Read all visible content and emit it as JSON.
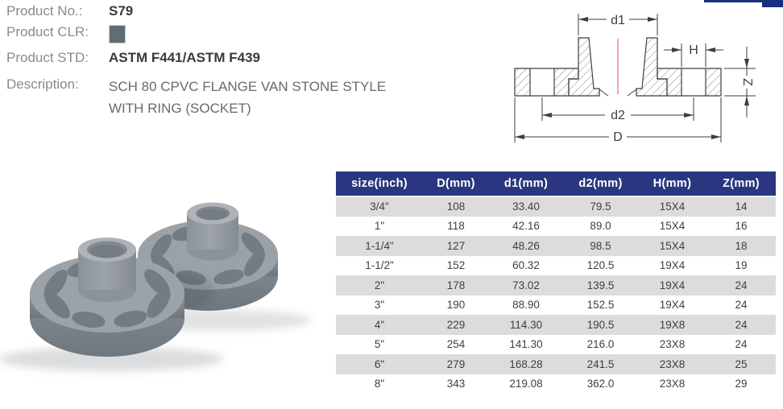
{
  "colors": {
    "accent": "#16307f",
    "navy": "#2a3780",
    "alt_row": "#dcdcdc",
    "swatch": "#5d6f72",
    "diagram_line": "#3e3e3e",
    "centerline": "#ef8f8f",
    "flange": "#9aa1a7"
  },
  "product_info": {
    "no_label": "Product No.:",
    "no_value": "S79",
    "clr_label": "Product CLR:",
    "clr_swatch_color": "#5d6f72",
    "std_label": "Product STD:",
    "std_value": "ASTM F441/ASTM F439",
    "desc_label": "Description:",
    "desc_value": "SCH 80 CPVC FLANGE VAN STONE STYLE WITH RING (SOCKET)"
  },
  "diagram": {
    "dim_labels": {
      "d1": "d1",
      "d2": "d2",
      "D": "D",
      "H": "H",
      "Z": "Z"
    }
  },
  "photo": {
    "description": "Two grey CPVC van stone style flanges with ring"
  },
  "spec_table": {
    "headers": [
      "size(inch)",
      "D(mm)",
      "d1(mm)",
      "d2(mm)",
      "H(mm)",
      "Z(mm)"
    ],
    "rows": [
      [
        "3/4\"",
        "108",
        "33.40",
        "79.5",
        "15X4",
        "14"
      ],
      [
        "1\"",
        "118",
        "42.16",
        "89.0",
        "15X4",
        "16"
      ],
      [
        "1-1/4\"",
        "127",
        "48.26",
        "98.5",
        "15X4",
        "18"
      ],
      [
        "1-1/2\"",
        "152",
        "60.32",
        "120.5",
        "19X4",
        "19"
      ],
      [
        "2\"",
        "178",
        "73.02",
        "139.5",
        "19X4",
        "24"
      ],
      [
        "3\"",
        "190",
        "88.90",
        "152.5",
        "19X4",
        "24"
      ],
      [
        "4\"",
        "229",
        "114.30",
        "190.5",
        "19X8",
        "24"
      ],
      [
        "5\"",
        "254",
        "141.30",
        "216.0",
        "23X8",
        "24"
      ],
      [
        "6\"",
        "279",
        "168.28",
        "241.5",
        "23X8",
        "25"
      ],
      [
        "8\"",
        "343",
        "219.08",
        "362.0",
        "23X8",
        "29"
      ]
    ]
  }
}
